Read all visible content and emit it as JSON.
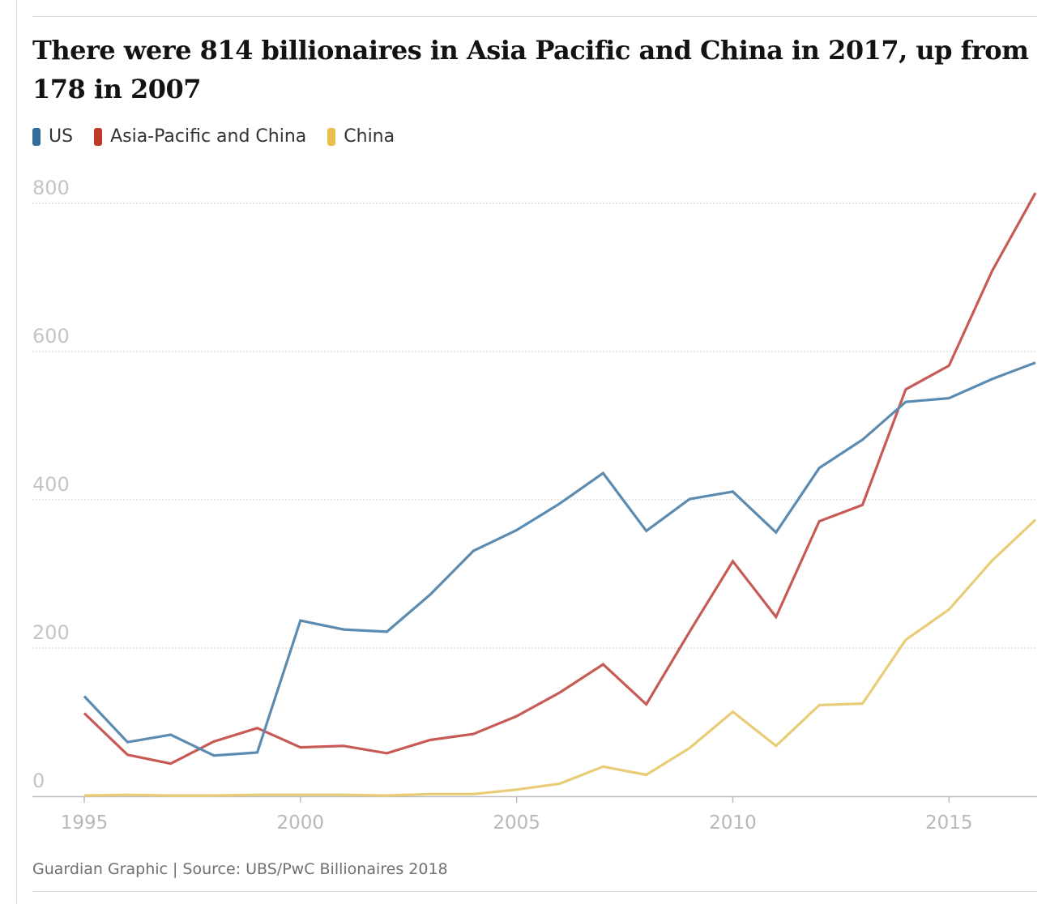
{
  "title": "There were 814 billionaires in Asia Pacific and China in 2017, up from 178 in 2007",
  "source": "Guardian Graphic | Source: UBS/PwC Billionaires 2018",
  "colors": {
    "us": "#5b8bb0",
    "apac": "#c85a55",
    "china": "#e8cc76",
    "legend_us": "#2f6d9e",
    "legend_apac": "#c0392b",
    "legend_china": "#e9c04e"
  },
  "chart_data": {
    "type": "line",
    "title": "There were 814 billionaires in Asia Pacific and China in 2017, up from 178 in 2007",
    "xlabel": "",
    "ylabel": "",
    "ylim": [
      0,
      800
    ],
    "xlim": [
      1995,
      2017
    ],
    "yticks": [
      "0",
      "200",
      "400",
      "600",
      "800"
    ],
    "yticks_values": [
      0,
      200,
      400,
      600,
      800
    ],
    "xticks": [
      "1995",
      "2000",
      "2005",
      "2010",
      "2015"
    ],
    "xticks_values": [
      1995,
      2000,
      2005,
      2010,
      2015
    ],
    "x": [
      1995,
      1996,
      1997,
      1998,
      1999,
      2000,
      2001,
      2002,
      2003,
      2004,
      2005,
      2006,
      2007,
      2008,
      2009,
      2010,
      2011,
      2012,
      2013,
      2014,
      2015,
      2016,
      2017
    ],
    "series": [
      {
        "name": "US",
        "color": "#5b8bb0",
        "legend_color": "#2f6d9e",
        "values": [
          135,
          73,
          83,
          55,
          59,
          237,
          225,
          222,
          272,
          331,
          359,
          395,
          436,
          358,
          401,
          411,
          356,
          443,
          481,
          532,
          537,
          563,
          585
        ]
      },
      {
        "name": "Asia-Pacific and China",
        "color": "#c85a55",
        "legend_color": "#c0392b",
        "values": [
          112,
          56,
          44,
          74,
          92,
          66,
          68,
          58,
          76,
          84,
          108,
          140,
          178,
          124,
          222,
          317,
          242,
          371,
          393,
          549,
          581,
          709,
          814
        ]
      },
      {
        "name": "China",
        "color": "#e8cc76",
        "legend_color": "#e9c04e",
        "values": [
          1,
          2,
          1,
          1,
          2,
          2,
          2,
          1,
          3,
          3,
          9,
          17,
          40,
          29,
          65,
          114,
          68,
          123,
          125,
          211,
          252,
          318,
          373
        ]
      }
    ]
  }
}
